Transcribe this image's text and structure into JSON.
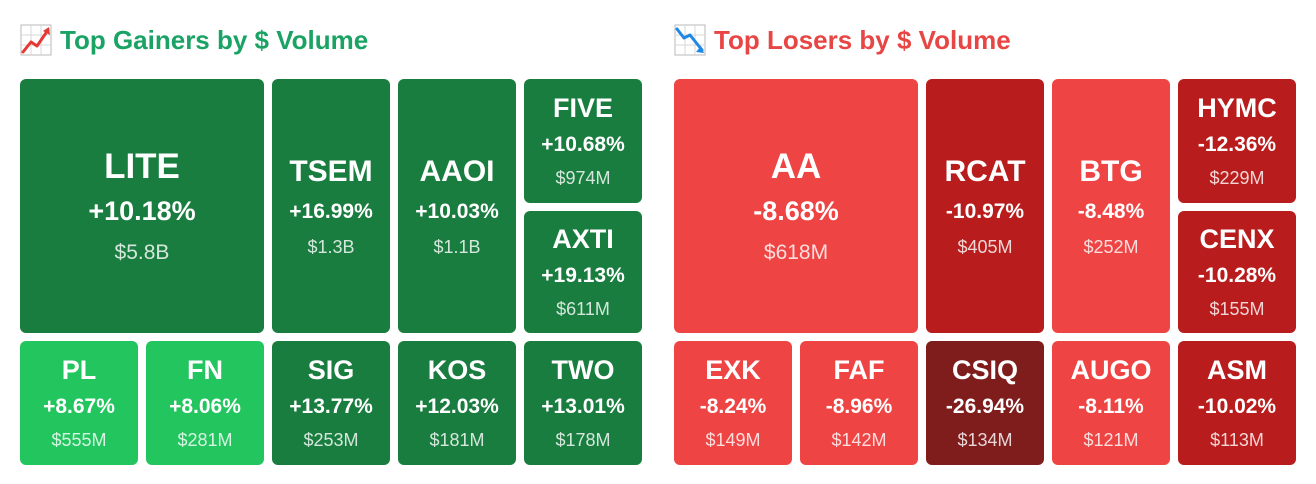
{
  "gainers": {
    "title": "Top Gainers by $ Volume",
    "icon": "chart-increasing-icon",
    "tiles": [
      {
        "symbol": "LITE",
        "change": "+10.18%",
        "volume": "$5.8B",
        "color": "#197d3f"
      },
      {
        "symbol": "TSEM",
        "change": "+16.99%",
        "volume": "$1.3B",
        "color": "#197d3f"
      },
      {
        "symbol": "AAOI",
        "change": "+10.03%",
        "volume": "$1.1B",
        "color": "#197d3f"
      },
      {
        "symbol": "FIVE",
        "change": "+10.68%",
        "volume": "$974M",
        "color": "#197d3f"
      },
      {
        "symbol": "AXTI",
        "change": "+19.13%",
        "volume": "$611M",
        "color": "#197d3f"
      },
      {
        "symbol": "PL",
        "change": "+8.67%",
        "volume": "$555M",
        "color": "#22c55e"
      },
      {
        "symbol": "FN",
        "change": "+8.06%",
        "volume": "$281M",
        "color": "#22c55e"
      },
      {
        "symbol": "SIG",
        "change": "+13.77%",
        "volume": "$253M",
        "color": "#197d3f"
      },
      {
        "symbol": "KOS",
        "change": "+12.03%",
        "volume": "$181M",
        "color": "#197d3f"
      },
      {
        "symbol": "TWO",
        "change": "+13.01%",
        "volume": "$178M",
        "color": "#197d3f"
      }
    ]
  },
  "losers": {
    "title": "Top Losers by $ Volume",
    "icon": "chart-decreasing-icon",
    "tiles": [
      {
        "symbol": "AA",
        "change": "-8.68%",
        "volume": "$618M",
        "color": "#ef4444"
      },
      {
        "symbol": "RCAT",
        "change": "-10.97%",
        "volume": "$405M",
        "color": "#b91c1c"
      },
      {
        "symbol": "BTG",
        "change": "-8.48%",
        "volume": "$252M",
        "color": "#ef4444"
      },
      {
        "symbol": "HYMC",
        "change": "-12.36%",
        "volume": "$229M",
        "color": "#b91c1c"
      },
      {
        "symbol": "CENX",
        "change": "-10.28%",
        "volume": "$155M",
        "color": "#b91c1c"
      },
      {
        "symbol": "EXK",
        "change": "-8.24%",
        "volume": "$149M",
        "color": "#ef4444"
      },
      {
        "symbol": "FAF",
        "change": "-8.96%",
        "volume": "$142M",
        "color": "#ef4444"
      },
      {
        "symbol": "CSIQ",
        "change": "-26.94%",
        "volume": "$134M",
        "color": "#7f1d1d"
      },
      {
        "symbol": "AUGO",
        "change": "-8.11%",
        "volume": "$121M",
        "color": "#ef4444"
      },
      {
        "symbol": "ASM",
        "change": "-10.02%",
        "volume": "$113M",
        "color": "#b91c1c"
      }
    ]
  }
}
